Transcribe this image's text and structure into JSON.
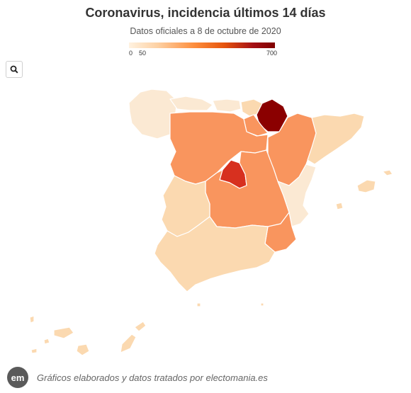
{
  "title": "Coronavirus, incidencia últimos 14 días",
  "subtitle": "Datos oficiales a 8 de octubre de 2020",
  "legend": {
    "min_label": "0",
    "mid_label": "50",
    "max_label": "700",
    "scale_min": 0,
    "scale_max": 700
  },
  "search_icon": "search-icon",
  "footer": {
    "logo_text": "em",
    "credit": "Gráficos elaborados y datos tratados por electomania.es"
  },
  "colors": {
    "very_light": "#fbe9d3",
    "light": "#fbd9b0",
    "medium": "#f9955e",
    "dark": "#d7301f",
    "darkest": "#8b0000"
  }
}
